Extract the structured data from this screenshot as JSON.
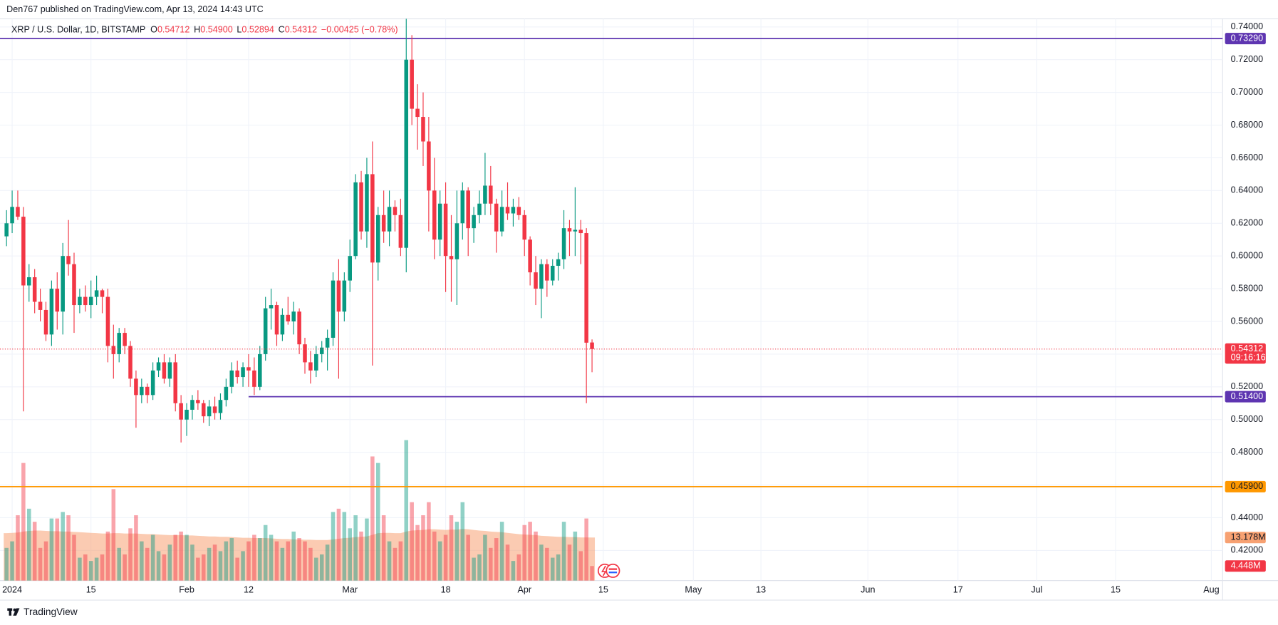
{
  "header": {
    "published": "Den767 published on TradingView.com, Apr 13, 2024 14:43 UTC"
  },
  "legend": {
    "symbol": "XRP / U.S. Dollar, 1D, BITSTAMP",
    "O": "0.54712",
    "H": "0.54900",
    "L": "0.52894",
    "C": "0.54312",
    "change": "−0.00425 (−0.78%)"
  },
  "footer": {
    "brand": "TradingView"
  },
  "chart_data": {
    "type": "candlestick",
    "x": [
      "2023-12-31",
      "2024-01-01",
      "2024-01-02",
      "2024-01-03",
      "2024-01-04",
      "2024-01-05",
      "2024-01-06",
      "2024-01-07",
      "2024-01-08",
      "2024-01-09",
      "2024-01-10",
      "2024-01-11",
      "2024-01-12",
      "2024-01-13",
      "2024-01-14",
      "2024-01-15",
      "2024-01-16",
      "2024-01-17",
      "2024-01-18",
      "2024-01-19",
      "2024-01-20",
      "2024-01-21",
      "2024-01-22",
      "2024-01-23",
      "2024-01-24",
      "2024-01-25",
      "2024-01-26",
      "2024-01-27",
      "2024-01-28",
      "2024-01-29",
      "2024-01-30",
      "2024-01-31",
      "2024-02-01",
      "2024-02-02",
      "2024-02-03",
      "2024-02-04",
      "2024-02-05",
      "2024-02-06",
      "2024-02-07",
      "2024-02-08",
      "2024-02-09",
      "2024-02-10",
      "2024-02-11",
      "2024-02-12",
      "2024-02-13",
      "2024-02-14",
      "2024-02-15",
      "2024-02-16",
      "2024-02-17",
      "2024-02-18",
      "2024-02-19",
      "2024-02-20",
      "2024-02-21",
      "2024-02-22",
      "2024-02-23",
      "2024-02-24",
      "2024-02-25",
      "2024-02-26",
      "2024-02-27",
      "2024-02-28",
      "2024-02-29",
      "2024-03-01",
      "2024-03-02",
      "2024-03-03",
      "2024-03-04",
      "2024-03-05",
      "2024-03-06",
      "2024-03-07",
      "2024-03-08",
      "2024-03-09",
      "2024-03-10",
      "2024-03-11",
      "2024-03-12",
      "2024-03-13",
      "2024-03-14",
      "2024-03-15",
      "2024-03-16",
      "2024-03-17",
      "2024-03-18",
      "2024-03-19",
      "2024-03-20",
      "2024-03-21",
      "2024-03-22",
      "2024-03-23",
      "2024-03-24",
      "2024-03-25",
      "2024-03-26",
      "2024-03-27",
      "2024-03-28",
      "2024-03-29",
      "2024-03-30",
      "2024-03-31",
      "2024-04-01",
      "2024-04-02",
      "2024-04-03",
      "2024-04-04",
      "2024-04-05",
      "2024-04-06",
      "2024-04-07",
      "2024-04-08",
      "2024-04-09",
      "2024-04-10",
      "2024-04-11",
      "2024-04-12",
      "2024-04-13"
    ],
    "open": [
      0.612,
      0.62,
      0.63,
      0.624,
      0.582,
      0.587,
      0.572,
      0.567,
      0.552,
      0.58,
      0.566,
      0.6,
      0.595,
      0.57,
      0.575,
      0.57,
      0.575,
      0.579,
      0.575,
      0.545,
      0.54,
      0.553,
      0.545,
      0.525,
      0.515,
      0.52,
      0.515,
      0.53,
      0.535,
      0.525,
      0.535,
      0.51,
      0.5,
      0.506,
      0.512,
      0.51,
      0.502,
      0.508,
      0.504,
      0.512,
      0.52,
      0.53,
      0.526,
      0.532,
      0.53,
      0.52,
      0.54,
      0.568,
      0.57,
      0.552,
      0.564,
      0.56,
      0.566,
      0.546,
      0.535,
      0.53,
      0.54,
      0.544,
      0.55,
      0.585,
      0.566,
      0.585,
      0.6,
      0.645,
      0.615,
      0.65,
      0.596,
      0.625,
      0.615,
      0.63,
      0.625,
      0.605,
      0.72,
      0.69,
      0.685,
      0.67,
      0.64,
      0.61,
      0.632,
      0.6,
      0.598,
      0.62,
      0.64,
      0.617,
      0.625,
      0.632,
      0.643,
      0.632,
      0.615,
      0.63,
      0.626,
      0.63,
      0.625,
      0.61,
      0.59,
      0.58,
      0.595,
      0.585,
      0.594,
      0.598,
      0.617,
      0.615,
      0.616,
      0.614,
      0.54712
    ],
    "high": [
      0.628,
      0.64,
      0.64,
      0.63,
      0.595,
      0.592,
      0.58,
      0.572,
      0.585,
      0.59,
      0.608,
      0.622,
      0.602,
      0.58,
      0.582,
      0.585,
      0.588,
      0.58,
      0.58,
      0.558,
      0.556,
      0.556,
      0.548,
      0.53,
      0.525,
      0.522,
      0.535,
      0.538,
      0.54,
      0.538,
      0.54,
      0.515,
      0.51,
      0.515,
      0.518,
      0.512,
      0.512,
      0.514,
      0.516,
      0.525,
      0.535,
      0.536,
      0.535,
      0.54,
      0.538,
      0.545,
      0.575,
      0.58,
      0.572,
      0.568,
      0.575,
      0.572,
      0.568,
      0.55,
      0.542,
      0.545,
      0.548,
      0.555,
      0.59,
      0.598,
      0.59,
      0.61,
      0.65,
      0.652,
      0.66,
      0.67,
      0.63,
      0.64,
      0.64,
      0.634,
      0.635,
      0.745,
      0.735,
      0.705,
      0.7,
      0.685,
      0.66,
      0.64,
      0.645,
      0.625,
      0.64,
      0.645,
      0.642,
      0.63,
      0.64,
      0.663,
      0.655,
      0.635,
      0.64,
      0.645,
      0.635,
      0.636,
      0.628,
      0.612,
      0.6,
      0.598,
      0.598,
      0.598,
      0.602,
      0.628,
      0.622,
      0.642,
      0.622,
      0.617,
      0.549
    ],
    "low": [
      0.606,
      0.614,
      0.622,
      0.505,
      0.572,
      0.565,
      0.56,
      0.548,
      0.545,
      0.555,
      0.552,
      0.588,
      0.553,
      0.565,
      0.566,
      0.562,
      0.57,
      0.565,
      0.535,
      0.525,
      0.535,
      0.54,
      0.52,
      0.495,
      0.51,
      0.51,
      0.512,
      0.526,
      0.522,
      0.52,
      0.505,
      0.486,
      0.49,
      0.5,
      0.506,
      0.498,
      0.496,
      0.5,
      0.5,
      0.508,
      0.516,
      0.522,
      0.52,
      0.52,
      0.515,
      0.518,
      0.536,
      0.555,
      0.545,
      0.548,
      0.558,
      0.552,
      0.54,
      0.528,
      0.522,
      0.526,
      0.535,
      0.53,
      0.545,
      0.525,
      0.56,
      0.578,
      0.598,
      0.61,
      0.605,
      0.533,
      0.585,
      0.608,
      0.606,
      0.615,
      0.6,
      0.59,
      0.68,
      0.665,
      0.655,
      0.615,
      0.598,
      0.6,
      0.578,
      0.572,
      0.57,
      0.61,
      0.6,
      0.608,
      0.62,
      0.625,
      0.625,
      0.602,
      0.612,
      0.622,
      0.618,
      0.622,
      0.6,
      0.582,
      0.57,
      0.562,
      0.575,
      0.582,
      0.585,
      0.592,
      0.6,
      0.6,
      0.595,
      0.51,
      0.52894
    ],
    "close": [
      0.62,
      0.63,
      0.624,
      0.582,
      0.587,
      0.572,
      0.567,
      0.552,
      0.58,
      0.566,
      0.6,
      0.595,
      0.57,
      0.575,
      0.57,
      0.575,
      0.579,
      0.575,
      0.545,
      0.54,
      0.553,
      0.545,
      0.525,
      0.515,
      0.52,
      0.515,
      0.53,
      0.535,
      0.525,
      0.535,
      0.51,
      0.5,
      0.506,
      0.512,
      0.51,
      0.502,
      0.508,
      0.504,
      0.512,
      0.52,
      0.53,
      0.526,
      0.532,
      0.53,
      0.52,
      0.54,
      0.568,
      0.57,
      0.552,
      0.564,
      0.56,
      0.566,
      0.546,
      0.535,
      0.53,
      0.54,
      0.544,
      0.55,
      0.585,
      0.566,
      0.585,
      0.6,
      0.645,
      0.615,
      0.65,
      0.596,
      0.625,
      0.615,
      0.63,
      0.625,
      0.605,
      0.72,
      0.69,
      0.685,
      0.67,
      0.64,
      0.61,
      0.632,
      0.6,
      0.598,
      0.62,
      0.64,
      0.617,
      0.625,
      0.632,
      0.643,
      0.632,
      0.615,
      0.63,
      0.626,
      0.63,
      0.625,
      0.61,
      0.59,
      0.58,
      0.595,
      0.585,
      0.594,
      0.598,
      0.617,
      0.615,
      0.616,
      0.614,
      0.547,
      0.54312
    ],
    "volume": [
      10,
      12,
      20,
      36,
      22,
      18,
      10,
      12,
      19,
      19,
      21,
      20,
      14,
      7,
      8,
      6,
      7,
      8,
      15,
      28,
      10,
      8,
      16,
      20,
      12,
      10,
      14,
      9,
      8,
      11,
      14,
      15,
      14,
      11,
      7,
      8,
      10,
      11,
      9,
      12,
      13,
      7,
      9,
      12,
      14,
      13,
      17,
      14,
      12,
      10,
      12,
      15,
      13,
      12,
      10,
      7,
      8,
      11,
      21,
      22,
      21,
      16,
      20,
      15,
      19,
      38,
      36,
      20,
      12,
      10,
      12,
      43,
      24,
      17,
      20,
      24,
      15,
      12,
      14,
      20,
      18,
      24,
      14,
      7,
      8,
      14,
      10,
      13,
      18,
      11,
      6,
      8,
      17,
      18,
      15,
      11,
      10,
      7,
      8,
      18,
      11,
      15,
      9,
      19,
      4.448
    ],
    "volume_ma": [
      14.5,
      14.6,
      14.7,
      15.0,
      15.2,
      15.3,
      15.3,
      15.2,
      15.1,
      15.1,
      15.0,
      15.0,
      14.9,
      14.8,
      14.7,
      14.6,
      14.5,
      14.4,
      14.4,
      14.5,
      14.5,
      14.4,
      14.4,
      14.4,
      14.3,
      14.2,
      14.2,
      14.1,
      14.0,
      13.9,
      13.9,
      13.9,
      13.8,
      13.8,
      13.7,
      13.6,
      13.5,
      13.5,
      13.4,
      13.4,
      13.3,
      13.2,
      13.1,
      13.1,
      13.0,
      13.0,
      13.0,
      12.9,
      12.8,
      12.7,
      12.7,
      12.6,
      12.6,
      12.5,
      12.5,
      12.4,
      12.4,
      12.4,
      12.6,
      12.8,
      13.0,
      13.1,
      13.3,
      13.4,
      13.5,
      14.0,
      14.5,
      14.6,
      14.6,
      14.5,
      14.5,
      15.0,
      15.3,
      15.4,
      15.5,
      15.7,
      15.7,
      15.6,
      15.5,
      15.6,
      15.6,
      15.8,
      15.7,
      15.5,
      15.3,
      15.2,
      15.0,
      14.9,
      14.8,
      14.6,
      14.4,
      14.2,
      14.1,
      14.0,
      13.9,
      13.7,
      13.6,
      13.5,
      13.4,
      13.4,
      13.3,
      13.3,
      13.2,
      13.2,
      13.178
    ],
    "xlim": [
      "2023-12-31",
      "2024-08-03"
    ],
    "xticks": [
      {
        "value": "2024-01-01",
        "label": "2024"
      },
      {
        "value": "2024-01-15",
        "label": "15"
      },
      {
        "value": "2024-02-01",
        "label": "Feb"
      },
      {
        "value": "2024-02-12",
        "label": "12"
      },
      {
        "value": "2024-03-01",
        "label": "Mar"
      },
      {
        "value": "2024-03-18",
        "label": "18"
      },
      {
        "value": "2024-04-01",
        "label": "Apr"
      },
      {
        "value": "2024-04-15",
        "label": "15"
      },
      {
        "value": "2024-05-01",
        "label": "May"
      },
      {
        "value": "2024-05-13",
        "label": "13"
      },
      {
        "value": "2024-06-01",
        "label": "Jun"
      },
      {
        "value": "2024-06-17",
        "label": "17"
      },
      {
        "value": "2024-07-01",
        "label": "Jul"
      },
      {
        "value": "2024-07-15",
        "label": "15"
      },
      {
        "value": "2024-08-01",
        "label": "Aug"
      }
    ],
    "ylim": [
      0.4016,
      0.745
    ],
    "yticks": [
      {
        "value": 0.74,
        "label": "0.74000"
      },
      {
        "value": 0.72,
        "label": "0.72000"
      },
      {
        "value": 0.7,
        "label": "0.70000"
      },
      {
        "value": 0.68,
        "label": "0.68000"
      },
      {
        "value": 0.66,
        "label": "0.66000"
      },
      {
        "value": 0.64,
        "label": "0.64000"
      },
      {
        "value": 0.62,
        "label": "0.62000"
      },
      {
        "value": 0.6,
        "label": "0.60000"
      },
      {
        "value": 0.58,
        "label": "0.58000"
      },
      {
        "value": 0.56,
        "label": "0.56000"
      },
      {
        "value": 0.54,
        "label": "0.54000"
      },
      {
        "value": 0.52,
        "label": "0.52000"
      },
      {
        "value": 0.5,
        "label": "0.50000"
      },
      {
        "value": 0.48,
        "label": "0.48000"
      },
      {
        "value": 0.46,
        "label": "0.46000"
      },
      {
        "value": 0.44,
        "label": "0.44000"
      },
      {
        "value": 0.42,
        "label": "0.42000"
      }
    ],
    "volume_lim": [
      0,
      172
    ],
    "grid": true,
    "up_color": "#089981",
    "down_color": "#f23645",
    "volume_ma_color": "#f7a172",
    "levels": [
      {
        "value": 0.7329,
        "label": "0.73290",
        "color": "#5e35b1"
      },
      {
        "value": 0.514,
        "label": "0.51400",
        "color": "#5e35b1",
        "from": "2024-02-12"
      },
      {
        "value": 0.459,
        "label": "0.45900",
        "color": "#ff9800"
      }
    ],
    "last_price_label": "0.54312",
    "countdown": "09:16:16",
    "volume_ma_label": "13.178M",
    "volume_label": "4.448M"
  }
}
